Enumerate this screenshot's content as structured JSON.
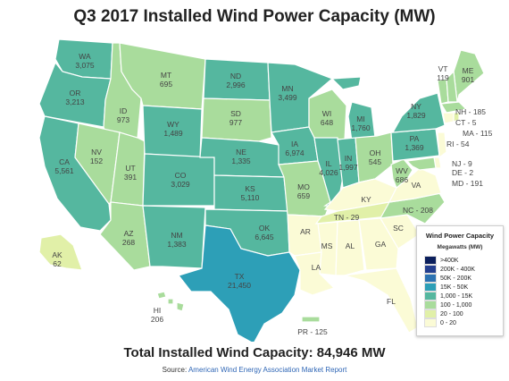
{
  "title": "Q3 2017 Installed Wind Power Capacity (MW)",
  "total": "Total Installed Wind Capacity: 84,946 MW",
  "source": {
    "label": "Source:",
    "link": "American Wind Energy Association Market Report"
  },
  "legend": {
    "title": "Wind Power Capacity",
    "subtitle": "Megawatts (MW)",
    "items": [
      {
        "label": ">400K",
        "color": "#0b1f5c"
      },
      {
        "label": "200K - 400K",
        "color": "#243f8f"
      },
      {
        "label": "50K - 200K",
        "color": "#2c73b2"
      },
      {
        "label": "15K - 50K",
        "color": "#2d9fb7"
      },
      {
        "label": "1,000 - 15K",
        "color": "#55b79f"
      },
      {
        "label": "100 - 1,000",
        "color": "#a9dc9c"
      },
      {
        "label": "20 - 100",
        "color": "#e1f0a8"
      },
      {
        "label": "0 - 20",
        "color": "#fbfbd6"
      }
    ]
  },
  "chart_data": {
    "type": "choropleth",
    "units": "MW",
    "states": [
      {
        "abbr": "WA",
        "value": "3,075",
        "bin": 4
      },
      {
        "abbr": "OR",
        "value": "3,213",
        "bin": 4
      },
      {
        "abbr": "CA",
        "value": "5,561",
        "bin": 4
      },
      {
        "abbr": "ID",
        "value": "973",
        "bin": 5
      },
      {
        "abbr": "NV",
        "value": "152",
        "bin": 5
      },
      {
        "abbr": "UT",
        "value": "391",
        "bin": 5
      },
      {
        "abbr": "AZ",
        "value": "268",
        "bin": 5
      },
      {
        "abbr": "MT",
        "value": "695",
        "bin": 5
      },
      {
        "abbr": "WY",
        "value": "1,489",
        "bin": 4
      },
      {
        "abbr": "CO",
        "value": "3,029",
        "bin": 4
      },
      {
        "abbr": "NM",
        "value": "1,383",
        "bin": 4
      },
      {
        "abbr": "ND",
        "value": "2,996",
        "bin": 4
      },
      {
        "abbr": "SD",
        "value": "977",
        "bin": 5
      },
      {
        "abbr": "NE",
        "value": "1,335",
        "bin": 4
      },
      {
        "abbr": "KS",
        "value": "5,110",
        "bin": 4
      },
      {
        "abbr": "OK",
        "value": "6,645",
        "bin": 4
      },
      {
        "abbr": "TX",
        "value": "21,450",
        "bin": 3
      },
      {
        "abbr": "MN",
        "value": "3,499",
        "bin": 4
      },
      {
        "abbr": "IA",
        "value": "6,974",
        "bin": 4
      },
      {
        "abbr": "MO",
        "value": "659",
        "bin": 5
      },
      {
        "abbr": "AR",
        "value": "",
        "bin": 7
      },
      {
        "abbr": "LA",
        "value": "",
        "bin": 7
      },
      {
        "abbr": "WI",
        "value": "648",
        "bin": 5
      },
      {
        "abbr": "IL",
        "value": "4,026",
        "bin": 4
      },
      {
        "abbr": "MI",
        "value": "1,760",
        "bin": 4
      },
      {
        "abbr": "IN",
        "value": "1,997",
        "bin": 4
      },
      {
        "abbr": "OH",
        "value": "545",
        "bin": 5
      },
      {
        "abbr": "KY",
        "value": "",
        "bin": 7
      },
      {
        "abbr": "TN",
        "value": "29",
        "bin": 6
      },
      {
        "abbr": "MS",
        "value": "",
        "bin": 7
      },
      {
        "abbr": "AL",
        "value": "",
        "bin": 7
      },
      {
        "abbr": "GA",
        "value": "",
        "bin": 7
      },
      {
        "abbr": "FL",
        "value": "",
        "bin": 7
      },
      {
        "abbr": "SC",
        "value": "",
        "bin": 7
      },
      {
        "abbr": "NC",
        "value": "208",
        "bin": 5
      },
      {
        "abbr": "VA",
        "value": "",
        "bin": 7
      },
      {
        "abbr": "WV",
        "value": "686",
        "bin": 5
      },
      {
        "abbr": "PA",
        "value": "1,369",
        "bin": 4
      },
      {
        "abbr": "NY",
        "value": "1,829",
        "bin": 4
      },
      {
        "abbr": "VT",
        "value": "119",
        "bin": 5
      },
      {
        "abbr": "ME",
        "value": "901",
        "bin": 5
      },
      {
        "abbr": "NH",
        "value": "185",
        "bin": 5
      },
      {
        "abbr": "MA",
        "value": "115",
        "bin": 5
      },
      {
        "abbr": "RI",
        "value": "54",
        "bin": 6
      },
      {
        "abbr": "CT",
        "value": "5",
        "bin": 7
      },
      {
        "abbr": "NJ",
        "value": "9",
        "bin": 7
      },
      {
        "abbr": "DE",
        "value": "2",
        "bin": 7
      },
      {
        "abbr": "MD",
        "value": "191",
        "bin": 5
      },
      {
        "abbr": "AK",
        "value": "62",
        "bin": 6
      },
      {
        "abbr": "HI",
        "value": "206",
        "bin": 5
      },
      {
        "abbr": "PR",
        "value": "125",
        "bin": 5
      }
    ]
  }
}
